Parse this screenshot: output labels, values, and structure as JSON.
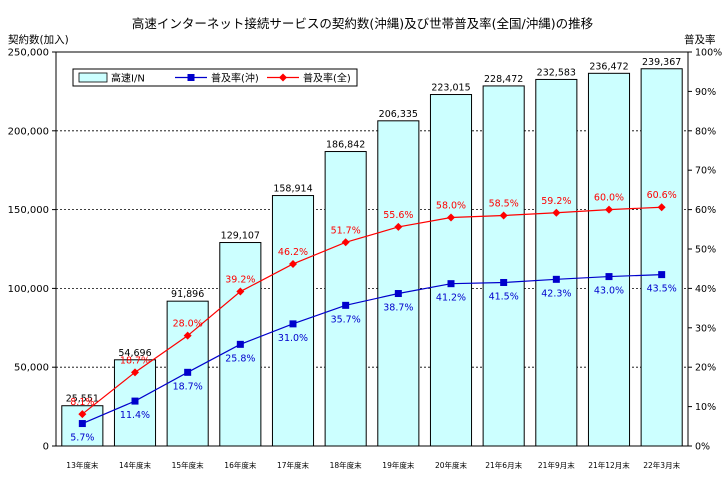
{
  "chart_data": {
    "type": "bar",
    "title": "高速インターネット接続サービスの契約数(沖縄)及び世帯普及率(全国/沖縄)の推移",
    "ylabel": "契約数(加入)",
    "y2label": "普及率",
    "ylim": [
      0,
      250000
    ],
    "y2lim": [
      0,
      100
    ],
    "yticks": [
      "0",
      "50,000",
      "100,000",
      "150,000",
      "200,000",
      "250,000"
    ],
    "y2ticks": [
      "0%",
      "10%",
      "20%",
      "30%",
      "40%",
      "50%",
      "60%",
      "70%",
      "80%",
      "90%",
      "100%"
    ],
    "categories": [
      "13年度末",
      "14年度末",
      "15年度末",
      "16年度末",
      "17年度末",
      "18年度末",
      "19年度末",
      "20年度末",
      "21年6月末",
      "21年9月末",
      "21年12月末",
      "22年3月末"
    ],
    "series": [
      {
        "name": "高速I/N",
        "kind": "bar",
        "axis": "left",
        "color": "#ccffff",
        "values": [
          25551,
          54696,
          91896,
          129107,
          158914,
          186842,
          206335,
          223015,
          228472,
          232583,
          236472,
          239367
        ],
        "labels": [
          "25,551",
          "54,696",
          "91,896",
          "129,107",
          "158,914",
          "186,842",
          "206,335",
          "223,015",
          "228,472",
          "232,583",
          "236,472",
          "239,367"
        ]
      },
      {
        "name": "普及率(沖)",
        "kind": "line",
        "axis": "right",
        "color": "#0000cc",
        "values": [
          5.7,
          11.4,
          18.7,
          25.8,
          31.0,
          35.7,
          38.7,
          41.2,
          41.5,
          42.3,
          43.0,
          43.5
        ],
        "labels": [
          "5.7%",
          "11.4%",
          "18.7%",
          "25.8%",
          "31.0%",
          "35.7%",
          "38.7%",
          "41.2%",
          "41.5%",
          "42.3%",
          "43.0%",
          "43.5%"
        ]
      },
      {
        "name": "普及率(全)",
        "kind": "line",
        "axis": "right",
        "color": "#ff0000",
        "values": [
          8.1,
          18.7,
          28.0,
          39.2,
          46.2,
          51.7,
          55.6,
          58.0,
          58.5,
          59.2,
          60.0,
          60.6
        ],
        "labels": [
          "8.1%",
          "18.7%",
          "28.0%",
          "39.2%",
          "46.2%",
          "51.7%",
          "55.6%",
          "58.0%",
          "58.5%",
          "59.2%",
          "60.0%",
          "60.6%"
        ]
      }
    ],
    "legend": "top-left"
  }
}
